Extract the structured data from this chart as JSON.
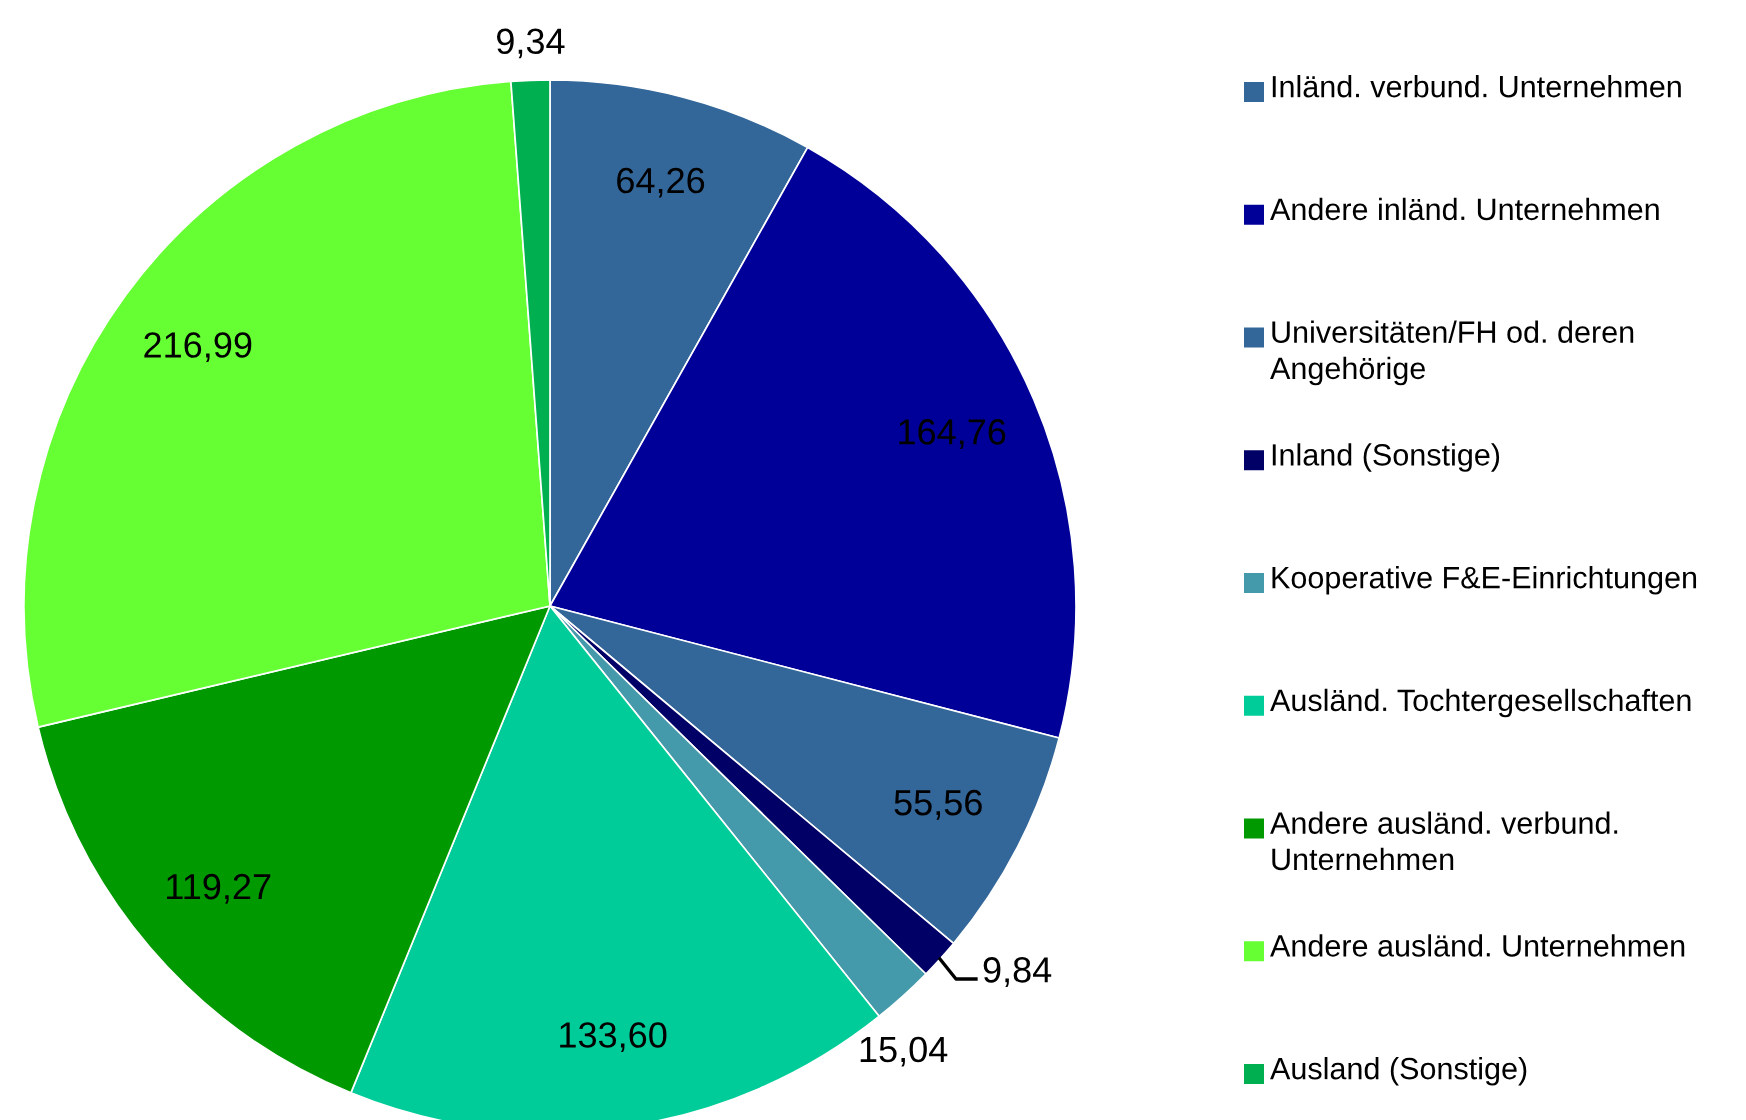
{
  "chart_data": {
    "type": "pie",
    "categories": [
      "Inländ. verbund. Unternehmen",
      "Andere inländ. Unternehmen",
      "Universitäten/FH od. deren Angehörige",
      "Inland (Sonstige)",
      "Kooperative F&E-Einrichtungen",
      "Ausländ. Tochtergesellschaften",
      "Andere ausländ. verbund. Unternehmen",
      "Andere ausländ. Unternehmen",
      "Ausland (Sonstige)"
    ],
    "values": [
      64.26,
      164.76,
      55.56,
      9.84,
      15.04,
      133.6,
      119.27,
      216.99,
      9.34
    ],
    "value_labels": [
      "64,26",
      "164,76",
      "55,56",
      "9,84",
      "15,04",
      "133,60",
      "119,27",
      "216,99",
      "9,34"
    ],
    "colors": [
      "#336699",
      "#000099",
      "#336699",
      "#000066",
      "#4499aa",
      "#00cc99",
      "#009900",
      "#66ff33",
      "#00b050"
    ],
    "legend": "right"
  }
}
